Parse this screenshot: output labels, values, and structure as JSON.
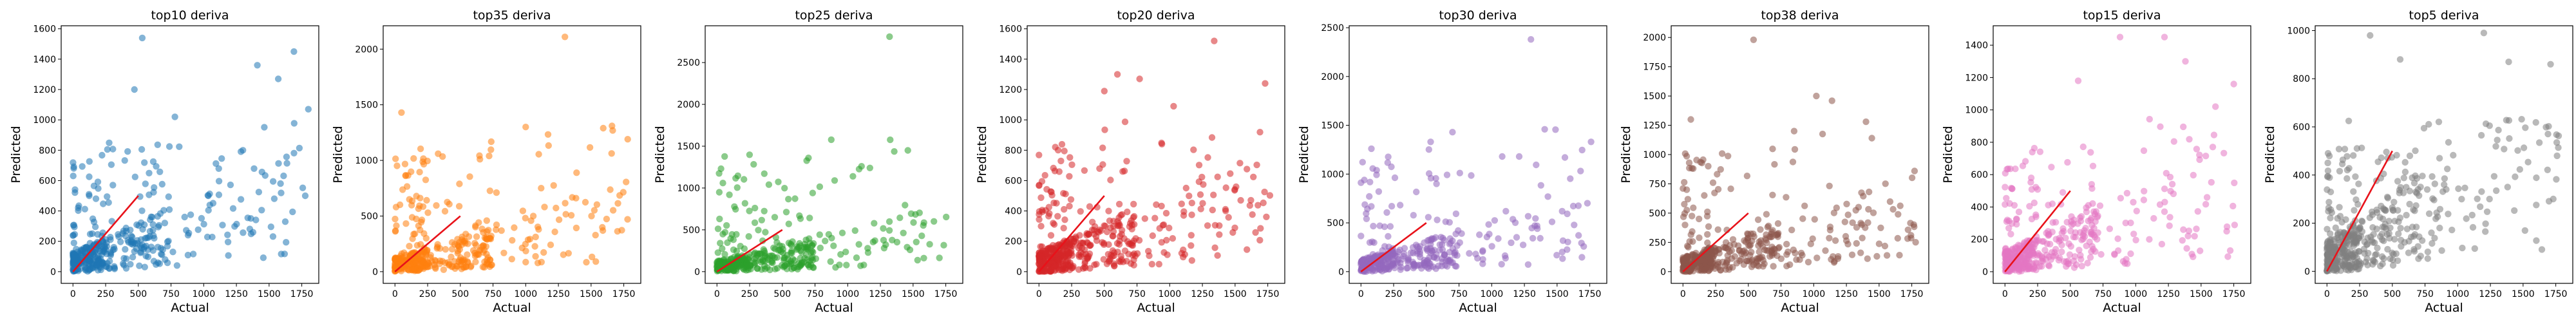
{
  "chart_data": [
    {
      "type": "scatter",
      "title": "top10 deriva",
      "xlabel": "Actual",
      "ylabel": "Predicted",
      "color": "#1f77b4",
      "xlim": [
        -90,
        1880
      ],
      "ylim": [
        -77,
        1620
      ],
      "xticks": [
        0,
        250,
        500,
        750,
        1000,
        1250,
        1500,
        1750
      ],
      "yticks": [
        0,
        200,
        400,
        600,
        800,
        1000,
        1200,
        1400,
        1600
      ],
      "ideal_line": [
        0,
        500
      ],
      "grid": false,
      "seed": 11,
      "n": 420,
      "outliers": [
        [
          530,
          1540
        ],
        [
          1690,
          1450
        ],
        [
          1570,
          1270
        ],
        [
          1410,
          1360
        ],
        [
          1800,
          1070
        ],
        [
          470,
          1200
        ],
        [
          1300,
          800
        ],
        [
          780,
          1020
        ]
      ]
    },
    {
      "type": "scatter",
      "title": "top35 deriva",
      "xlabel": "Actual",
      "ylabel": "Predicted",
      "color": "#ff7f0e",
      "xlim": [
        -90,
        1880
      ],
      "ylim": [
        -105,
        2210
      ],
      "xticks": [
        0,
        250,
        500,
        750,
        1000,
        1250,
        1500,
        1750
      ],
      "yticks": [
        0,
        500,
        1000,
        1500,
        2000
      ],
      "ideal_line": [
        0,
        500
      ],
      "grid": false,
      "seed": 23,
      "n": 430,
      "outliers": [
        [
          1300,
          2110
        ],
        [
          50,
          1430
        ],
        [
          1660,
          1310
        ],
        [
          1000,
          1300
        ],
        [
          720,
          1040
        ],
        [
          1780,
          1190
        ],
        [
          330,
          1060
        ]
      ]
    },
    {
      "type": "scatter",
      "title": "top25 deriva",
      "xlabel": "Actual",
      "ylabel": "Predicted",
      "color": "#2ca02c",
      "xlim": [
        -90,
        1880
      ],
      "ylim": [
        -140,
        2940
      ],
      "xticks": [
        0,
        250,
        500,
        750,
        1000,
        1250,
        1500,
        1750
      ],
      "yticks": [
        0,
        500,
        1000,
        1500,
        2000,
        2500
      ],
      "ideal_line": [
        0,
        500
      ],
      "grid": false,
      "seed": 37,
      "n": 400,
      "outliers": [
        [
          1320,
          2810
        ],
        [
          1460,
          1450
        ],
        [
          700,
          1360
        ],
        [
          1170,
          1240
        ],
        [
          900,
          1090
        ],
        [
          1040,
          1140
        ]
      ]
    },
    {
      "type": "scatter",
      "title": "top20 deriva",
      "xlabel": "Actual",
      "ylabel": "Predicted",
      "color": "#d62728",
      "xlim": [
        -90,
        1880
      ],
      "ylim": [
        -77,
        1620
      ],
      "xticks": [
        0,
        250,
        500,
        750,
        1000,
        1250,
        1500,
        1750
      ],
      "yticks": [
        0,
        200,
        400,
        600,
        800,
        1000,
        1200,
        1400,
        1600
      ],
      "ideal_line": [
        0,
        500
      ],
      "grid": false,
      "seed": 53,
      "n": 520,
      "outliers": [
        [
          1340,
          1520
        ],
        [
          600,
          1300
        ],
        [
          770,
          1270
        ],
        [
          1730,
          1240
        ],
        [
          1030,
          1090
        ],
        [
          500,
          1190
        ]
      ]
    },
    {
      "type": "scatter",
      "title": "top30 deriva",
      "xlabel": "Actual",
      "ylabel": "Predicted",
      "color": "#9467bd",
      "xlim": [
        -90,
        1880
      ],
      "ylim": [
        -120,
        2520
      ],
      "xticks": [
        0,
        250,
        500,
        750,
        1000,
        1250,
        1500,
        1750
      ],
      "yticks": [
        0,
        500,
        1000,
        1500,
        2000,
        2500
      ],
      "ideal_line": [
        0,
        500
      ],
      "grid": false,
      "seed": 67,
      "n": 400,
      "outliers": [
        [
          1300,
          2380
        ],
        [
          80,
          1260
        ],
        [
          700,
          1430
        ],
        [
          1560,
          1170
        ],
        [
          1080,
          1180
        ],
        [
          1760,
          1330
        ]
      ]
    },
    {
      "type": "scatter",
      "title": "top38 deriva",
      "xlabel": "Actual",
      "ylabel": "Predicted",
      "color": "#8c564b",
      "xlim": [
        -90,
        1880
      ],
      "ylim": [
        -100,
        2100
      ],
      "xticks": [
        0,
        250,
        500,
        750,
        1000,
        1250,
        1500,
        1750
      ],
      "yticks": [
        0,
        250,
        500,
        750,
        1000,
        1250,
        1500,
        1750,
        2000
      ],
      "ideal_line": [
        0,
        500
      ],
      "grid": false,
      "seed": 79,
      "n": 460,
      "outliers": [
        [
          540,
          1980
        ],
        [
          1020,
          1500
        ],
        [
          1140,
          1460
        ],
        [
          60,
          1300
        ],
        [
          1400,
          1280
        ],
        [
          850,
          1200
        ]
      ]
    },
    {
      "type": "scatter",
      "title": "top15 deriva",
      "xlabel": "Actual",
      "ylabel": "Predicted",
      "color": "#e377c2",
      "xlim": [
        -90,
        1880
      ],
      "ylim": [
        -72,
        1520
      ],
      "xticks": [
        0,
        250,
        500,
        750,
        1000,
        1250,
        1500,
        1750
      ],
      "yticks": [
        0,
        200,
        400,
        600,
        800,
        1000,
        1200,
        1400
      ],
      "ideal_line": [
        0,
        500
      ],
      "grid": false,
      "seed": 97,
      "n": 440,
      "outliers": [
        [
          880,
          1450
        ],
        [
          1220,
          1450
        ],
        [
          1380,
          1300
        ],
        [
          1750,
          1160
        ],
        [
          560,
          1180
        ],
        [
          1610,
          1020
        ]
      ]
    },
    {
      "type": "scatter",
      "title": "top5 deriva",
      "xlabel": "Actual",
      "ylabel": "Predicted",
      "color": "#7f7f7f",
      "xlim": [
        -90,
        1880
      ],
      "ylim": [
        -50,
        1020
      ],
      "xticks": [
        0,
        250,
        500,
        750,
        1000,
        1250,
        1500,
        1750
      ],
      "yticks": [
        0,
        200,
        400,
        600,
        800,
        1000
      ],
      "ideal_line": [
        0,
        500
      ],
      "grid": false,
      "seed": 103,
      "n": 480,
      "outliers": [
        [
          1200,
          990
        ],
        [
          560,
          880
        ],
        [
          1390,
          870
        ],
        [
          1710,
          860
        ],
        [
          330,
          980
        ],
        [
          1760,
          480
        ]
      ]
    }
  ]
}
